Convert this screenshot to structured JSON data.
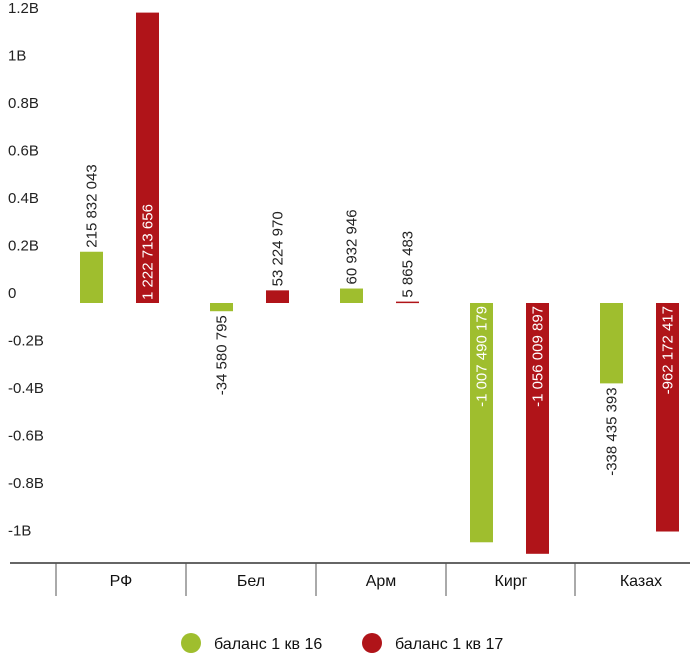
{
  "chart_data": {
    "type": "bar",
    "categories": [
      "РФ",
      "Бел",
      "Арм",
      "Кирг",
      "Казах"
    ],
    "series": [
      {
        "name": "баланс 1 кв 16",
        "color": "#9fbe2e",
        "values": [
          215832043,
          -34580795,
          60932946,
          -1007490179,
          -338435393
        ],
        "labels": [
          "215 832 043",
          "-34 580 795",
          "60 932 946",
          "-1 007 490 179",
          "-338 435 393"
        ]
      },
      {
        "name": "баланс 1 кв 17",
        "color": "#b01419",
        "values": [
          1222713656,
          53224970,
          5865483,
          -1056009897,
          -962172417
        ],
        "labels": [
          "1 222 713 656",
          "53 224 970",
          "5 865 483",
          "-1 056 009 897",
          "-962 172 417"
        ]
      }
    ],
    "y_ticks": [
      {
        "value": 1200000000,
        "label": "1.2B"
      },
      {
        "value": 1000000000,
        "label": "1B"
      },
      {
        "value": 800000000,
        "label": "0.8B"
      },
      {
        "value": 600000000,
        "label": "0.6B"
      },
      {
        "value": 400000000,
        "label": "0.4B"
      },
      {
        "value": 200000000,
        "label": "0.2B"
      },
      {
        "value": 0,
        "label": "0"
      },
      {
        "value": -200000000,
        "label": "-0.2B"
      },
      {
        "value": -400000000,
        "label": "-0.4B"
      },
      {
        "value": -600000000,
        "label": "-0.6B"
      },
      {
        "value": -800000000,
        "label": "-0.8B"
      },
      {
        "value": -1000000000,
        "label": "-1B"
      }
    ],
    "ylim": [
      -1100000000,
      1250000000
    ],
    "grid": false,
    "legend_position": "bottom"
  }
}
